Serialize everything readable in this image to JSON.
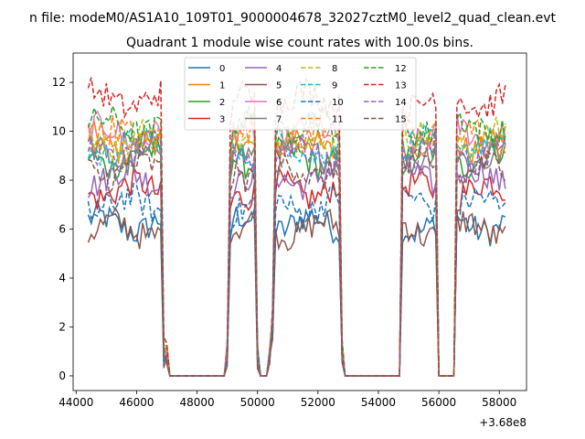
{
  "chart_data": {
    "type": "line",
    "suptitle": "n file: modeM0/AS1A10_109T01_9000004678_32027cztM0_level2_quad_clean.evt",
    "title": "Quadrant 1 module wise count rates with 100.0s bins.",
    "xlabel": "",
    "ylabel": "",
    "x_offset_label": "+3.68e8",
    "xlim": [
      43900,
      58900
    ],
    "ylim": [
      -0.6,
      13.2
    ],
    "x_ticks": [
      44000,
      46000,
      48000,
      50000,
      52000,
      54000,
      56000,
      58000
    ],
    "x_tick_labels": [
      "44000",
      "46000",
      "48000",
      "50000",
      "52000",
      "54000",
      "56000",
      "58000"
    ],
    "y_ticks": [
      0,
      2,
      4,
      6,
      8,
      10,
      12
    ],
    "y_tick_labels": [
      "0",
      "2",
      "4",
      "6",
      "8",
      "10",
      "12"
    ],
    "grid": false,
    "legend_location": "top-center",
    "legend_columns": 4,
    "bin_size_s": 100,
    "active_segments": [
      [
        44400,
        46800
      ],
      [
        49100,
        49900
      ],
      [
        50500,
        52700
      ],
      [
        54800,
        55900
      ],
      [
        56600,
        58200
      ]
    ],
    "gap_segments": [
      [
        47100,
        48900
      ],
      [
        50100,
        50300
      ],
      [
        52900,
        54700
      ],
      [
        56000,
        56500
      ]
    ],
    "series": [
      {
        "name": "0",
        "mean": 6.2,
        "color": "#1f77b4",
        "dash": "solid"
      },
      {
        "name": "1",
        "mean": 9.5,
        "color": "#ff7f0e",
        "dash": "solid"
      },
      {
        "name": "2",
        "mean": 8.9,
        "color": "#2ca02c",
        "dash": "solid"
      },
      {
        "name": "3",
        "mean": 7.6,
        "color": "#d62728",
        "dash": "solid"
      },
      {
        "name": "4",
        "mean": 8.1,
        "color": "#9467bd",
        "dash": "solid"
      },
      {
        "name": "5",
        "mean": 6.0,
        "color": "#8c564b",
        "dash": "solid"
      },
      {
        "name": "6",
        "mean": 9.9,
        "color": "#e377c2",
        "dash": "solid"
      },
      {
        "name": "7",
        "mean": 9.0,
        "color": "#7f7f7f",
        "dash": "solid"
      },
      {
        "name": "8",
        "mean": 9.7,
        "color": "#bcbd22",
        "dash": "dashed"
      },
      {
        "name": "9",
        "mean": 9.3,
        "color": "#17becf",
        "dash": "dashed"
      },
      {
        "name": "10",
        "mean": 7.0,
        "color": "#1f77b4",
        "dash": "dashed"
      },
      {
        "name": "11",
        "mean": 9.8,
        "color": "#ff7f0e",
        "dash": "dashed"
      },
      {
        "name": "12",
        "mean": 10.2,
        "color": "#2ca02c",
        "dash": "dashed"
      },
      {
        "name": "13",
        "mean": 11.3,
        "color": "#d62728",
        "dash": "dashed"
      },
      {
        "name": "14",
        "mean": 9.1,
        "color": "#9467bd",
        "dash": "dashed"
      },
      {
        "name": "15",
        "mean": 8.4,
        "color": "#8c564b",
        "dash": "dashed"
      }
    ]
  }
}
